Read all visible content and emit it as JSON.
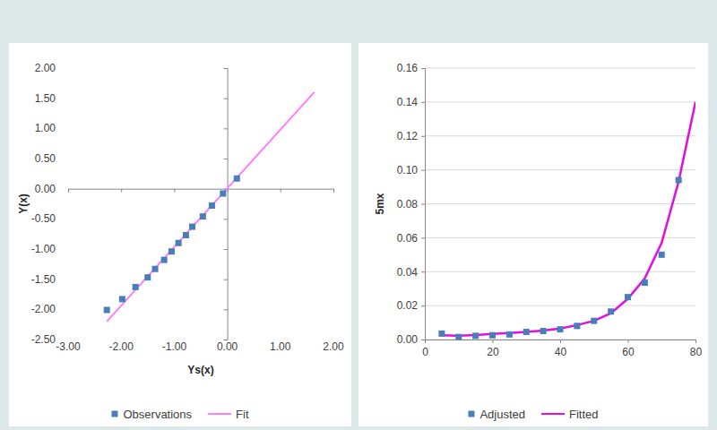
{
  "chart_data": [
    {
      "type": "scatter",
      "x_label": "Ys(x)",
      "y_label": "Y(x)",
      "xlim": [
        -3,
        2
      ],
      "xticks": [
        {
          "value": -3,
          "label": "-3.00"
        },
        {
          "value": -2,
          "label": "-2.00"
        },
        {
          "value": -1,
          "label": "-1.00"
        },
        {
          "value": 0,
          "label": "0.00"
        },
        {
          "value": 1,
          "label": "1.00"
        },
        {
          "value": 2,
          "label": "2.00"
        }
      ],
      "ylim": [
        -2.5,
        2
      ],
      "yticks": [
        {
          "value": -2.5,
          "label": "-2.50"
        },
        {
          "value": -2,
          "label": "-2.00"
        },
        {
          "value": -1.5,
          "label": "-1.50"
        },
        {
          "value": -1,
          "label": "-1.00"
        },
        {
          "value": -0.5,
          "label": "-0.50"
        },
        {
          "value": 0,
          "label": "0.00"
        },
        {
          "value": 0.5,
          "label": "0.50"
        },
        {
          "value": 1,
          "label": "1.00"
        },
        {
          "value": 1.5,
          "label": "1.50"
        },
        {
          "value": 2,
          "label": "2.00"
        }
      ],
      "grid": false,
      "legend": "bottom",
      "series": [
        {
          "name": "Observations",
          "type": "scatter",
          "marker": "square",
          "color": "#4a7ebb",
          "x": [
            -2.27,
            -1.98,
            -1.73,
            -1.5,
            -1.36,
            -1.19,
            -1.05,
            -0.92,
            -0.78,
            -0.66,
            -0.46,
            -0.29,
            -0.08,
            0.18
          ],
          "values": [
            -2.01,
            -1.83,
            -1.63,
            -1.47,
            -1.33,
            -1.18,
            -1.04,
            -0.9,
            -0.77,
            -0.63,
            -0.46,
            -0.28,
            -0.08,
            0.17
          ]
        },
        {
          "name": "Fit",
          "type": "line",
          "line_style": "solid",
          "color": "#ff7cff",
          "x": [
            -2.27,
            1.64
          ],
          "values": [
            -2.2,
            1.6
          ]
        }
      ]
    },
    {
      "type": "scatter",
      "y_label": "5mx",
      "xlim": [
        0,
        80
      ],
      "xticks": [
        0,
        20,
        40,
        60,
        80
      ],
      "ylim": [
        0,
        0.16
      ],
      "yticks": [
        {
          "value": 0,
          "label": "0.00"
        },
        {
          "value": 0.02,
          "label": "0.02"
        },
        {
          "value": 0.04,
          "label": "0.04"
        },
        {
          "value": 0.06,
          "label": "0.06"
        },
        {
          "value": 0.08,
          "label": "0.08"
        },
        {
          "value": 0.1,
          "label": "0.10"
        },
        {
          "value": 0.12,
          "label": "0.12"
        },
        {
          "value": 0.14,
          "label": "0.14"
        },
        {
          "value": 0.16,
          "label": "0.16"
        }
      ],
      "grid": true,
      "legend": "bottom",
      "series": [
        {
          "name": "Adjusted",
          "type": "scatter",
          "marker": "square",
          "color": "#4a7ebb",
          "x": [
            5,
            10,
            15,
            20,
            25,
            30,
            35,
            40,
            45,
            50,
            55,
            60,
            65,
            70,
            75
          ],
          "values": [
            0.0035,
            0.0015,
            0.0022,
            0.0025,
            0.003,
            0.0045,
            0.005,
            0.006,
            0.008,
            0.011,
            0.0165,
            0.025,
            0.0335,
            0.05,
            0.094
          ]
        },
        {
          "name": "Fitted",
          "type": "line",
          "line_style": "solid",
          "color": "#e010e0",
          "x": [
            5,
            10,
            15,
            20,
            25,
            30,
            35,
            40,
            45,
            50,
            55,
            60,
            65,
            70,
            75,
            80
          ],
          "values": [
            0.0025,
            0.0022,
            0.0027,
            0.0033,
            0.0038,
            0.0045,
            0.0053,
            0.0065,
            0.0085,
            0.011,
            0.0155,
            0.024,
            0.036,
            0.057,
            0.093,
            0.14
          ]
        }
      ]
    }
  ]
}
